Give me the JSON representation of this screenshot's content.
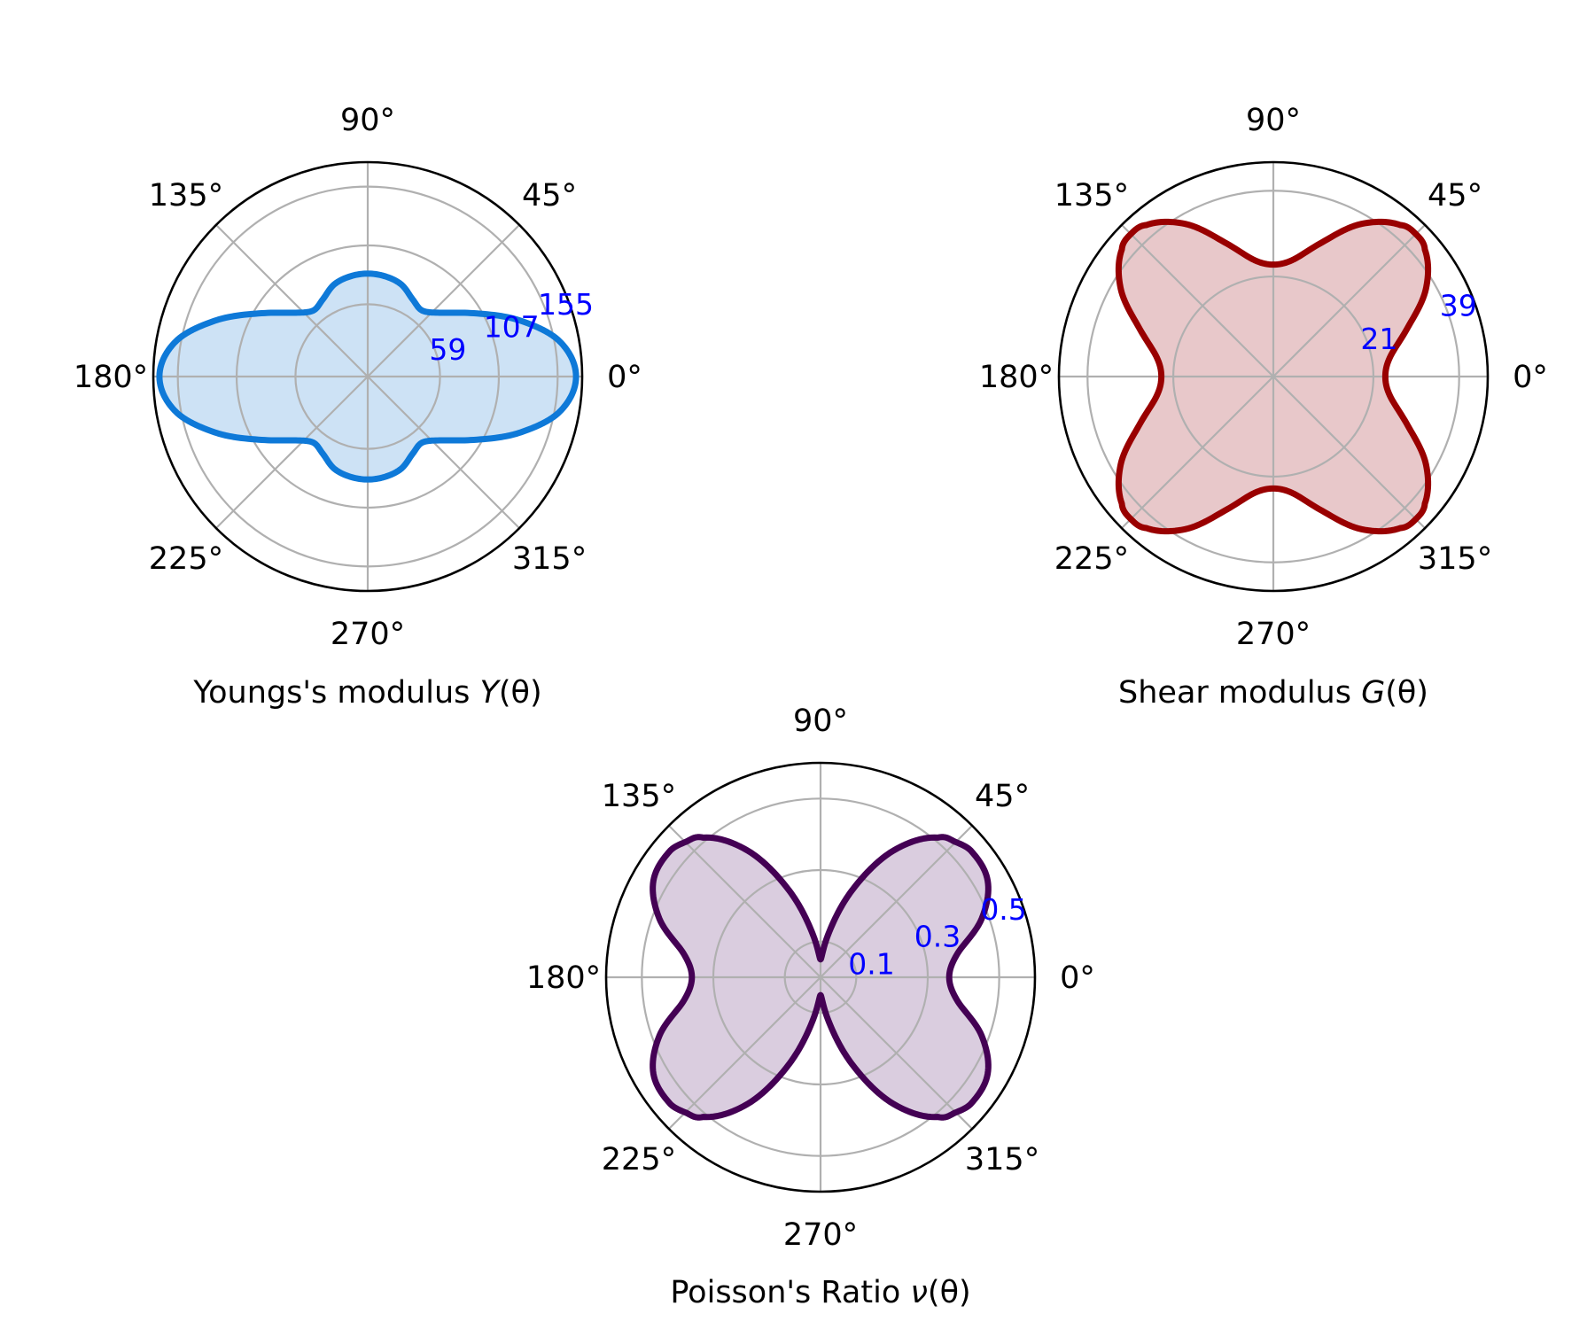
{
  "chart_data": [
    {
      "type": "polar",
      "title": "Youngs's modulus Y(θ)",
      "title_prefix": "Youngs's modulus ",
      "title_symbol": "Y",
      "title_suffix": "(θ)",
      "rlim": [
        0,
        175
      ],
      "radial_ticks": [
        59,
        107,
        155
      ],
      "radial_tick_labels": [
        "59",
        "107",
        "155"
      ],
      "angle_ticks": [
        0,
        45,
        90,
        135,
        180,
        225,
        270,
        315
      ],
      "angle_tick_labels": [
        "0°",
        "45°",
        "90°",
        "135°",
        "180°",
        "225°",
        "270°",
        "315°"
      ],
      "grid": true,
      "color": "#0e79d8",
      "fill_color": "#cde2f5",
      "theta_deg": [
        0,
        10,
        20,
        30,
        40,
        50,
        60,
        70,
        80,
        90
      ],
      "r": [
        170,
        160,
        133,
        103,
        81,
        70,
        73,
        80,
        83,
        84
      ],
      "symmetry": "mirror-x-and-y"
    },
    {
      "type": "polar",
      "title": "Shear modulus G(θ)",
      "title_prefix": "Shear modulus ",
      "title_symbol": "G",
      "title_suffix": "(θ)",
      "rlim": [
        0,
        45
      ],
      "radial_ticks": [
        21,
        39
      ],
      "radial_tick_labels": [
        "21",
        "39"
      ],
      "angle_ticks": [
        0,
        45,
        90,
        135,
        180,
        225,
        270,
        315
      ],
      "angle_tick_labels": [
        "0°",
        "45°",
        "90°",
        "135°",
        "180°",
        "225°",
        "270°",
        "315°"
      ],
      "grid": true,
      "color": "#990000",
      "fill_color": "#e8c8ca",
      "theta_deg": [
        0,
        10,
        20,
        30,
        40,
        45,
        50,
        60,
        70,
        80,
        90
      ],
      "r": [
        23.5,
        25,
        30,
        37,
        41.5,
        42.3,
        41.5,
        37,
        30,
        25,
        23.5
      ],
      "symmetry": "mirror-x-and-y"
    },
    {
      "type": "polar",
      "title": "Poisson's Ratio ν(θ)",
      "title_prefix": "Poisson's Ratio ",
      "title_symbol": "ν",
      "title_suffix": "(θ)",
      "rlim": [
        0,
        0.6
      ],
      "radial_ticks": [
        0.1,
        0.3,
        0.5
      ],
      "radial_tick_labels": [
        "0.1",
        "0.3",
        "0.5"
      ],
      "angle_ticks": [
        0,
        45,
        90,
        135,
        180,
        225,
        270,
        315
      ],
      "angle_tick_labels": [
        "0°",
        "45°",
        "90°",
        "135°",
        "180°",
        "225°",
        "270°",
        "315°"
      ],
      "grid": true,
      "color": "#440154",
      "fill_color": "#dacddf",
      "theta_deg": [
        0,
        10,
        20,
        30,
        40,
        45,
        50,
        60,
        70,
        80,
        90
      ],
      "r": [
        0.36,
        0.39,
        0.48,
        0.54,
        0.55,
        0.535,
        0.51,
        0.41,
        0.26,
        0.12,
        0.05
      ],
      "symmetry": "mirror-x-and-y"
    }
  ]
}
